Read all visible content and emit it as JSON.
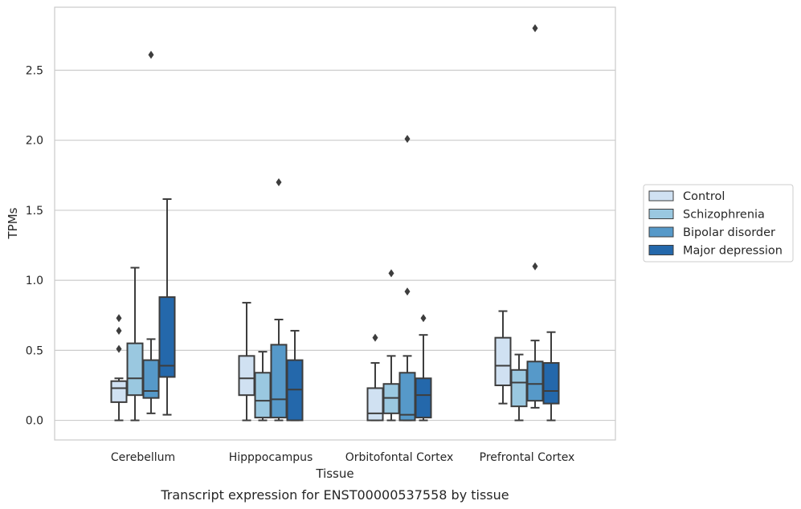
{
  "caption": "Transcript expression for ENST00000537558 by tissue",
  "chart_data": {
    "type": "boxplot",
    "xlabel": "Tissue",
    "ylabel": "TPMs",
    "ylim": [
      -0.14,
      2.95
    ],
    "yticks": [
      0.0,
      0.5,
      1.0,
      1.5,
      2.0,
      2.5
    ],
    "ytick_labels": [
      "0.0",
      "0.5",
      "1.0",
      "1.5",
      "2.0",
      "2.5"
    ],
    "grid": "horizontal",
    "legend_position": "right",
    "categories": [
      "Cerebellum",
      "Hipppocampus",
      "Orbitofontal Cortex",
      "Prefrontal Cortex"
    ],
    "series": [
      {
        "name": "Control",
        "color": "#d0e1f2",
        "boxes": [
          {
            "whisker_low": 0.0,
            "q1": 0.13,
            "median": 0.23,
            "q3": 0.28,
            "whisker_high": 0.3,
            "outliers": [
              0.51,
              0.64,
              0.73
            ]
          },
          {
            "whisker_low": 0.0,
            "q1": 0.18,
            "median": 0.3,
            "q3": 0.46,
            "whisker_high": 0.84,
            "outliers": []
          },
          {
            "whisker_low": 0.0,
            "q1": 0.0,
            "median": 0.05,
            "q3": 0.23,
            "whisker_high": 0.41,
            "outliers": [
              0.59
            ]
          },
          {
            "whisker_low": 0.12,
            "q1": 0.25,
            "median": 0.39,
            "q3": 0.59,
            "whisker_high": 0.78,
            "outliers": []
          }
        ]
      },
      {
        "name": "Schizophrenia",
        "color": "#9ac8e0",
        "boxes": [
          {
            "whisker_low": 0.0,
            "q1": 0.18,
            "median": 0.3,
            "q3": 0.55,
            "whisker_high": 1.09,
            "outliers": []
          },
          {
            "whisker_low": 0.0,
            "q1": 0.02,
            "median": 0.14,
            "q3": 0.34,
            "whisker_high": 0.49,
            "outliers": []
          },
          {
            "whisker_low": 0.0,
            "q1": 0.05,
            "median": 0.16,
            "q3": 0.26,
            "whisker_high": 0.46,
            "outliers": [
              1.05
            ]
          },
          {
            "whisker_low": 0.0,
            "q1": 0.1,
            "median": 0.27,
            "q3": 0.36,
            "whisker_high": 0.47,
            "outliers": []
          }
        ]
      },
      {
        "name": "Bipolar disorder",
        "color": "#5699c9",
        "boxes": [
          {
            "whisker_low": 0.05,
            "q1": 0.16,
            "median": 0.21,
            "q3": 0.43,
            "whisker_high": 0.58,
            "outliers": [
              2.61
            ]
          },
          {
            "whisker_low": 0.0,
            "q1": 0.02,
            "median": 0.15,
            "q3": 0.54,
            "whisker_high": 0.72,
            "outliers": [
              1.7
            ]
          },
          {
            "whisker_low": 0.0,
            "q1": 0.0,
            "median": 0.04,
            "q3": 0.34,
            "whisker_high": 0.46,
            "outliers": [
              0.92,
              2.01
            ]
          },
          {
            "whisker_low": 0.09,
            "q1": 0.14,
            "median": 0.26,
            "q3": 0.42,
            "whisker_high": 0.57,
            "outliers": [
              1.1,
              2.8
            ]
          }
        ]
      },
      {
        "name": "Major depression",
        "color": "#2468ab",
        "boxes": [
          {
            "whisker_low": 0.04,
            "q1": 0.31,
            "median": 0.39,
            "q3": 0.88,
            "whisker_high": 1.58,
            "outliers": []
          },
          {
            "whisker_low": 0.0,
            "q1": 0.0,
            "median": 0.22,
            "q3": 0.43,
            "whisker_high": 0.64,
            "outliers": []
          },
          {
            "whisker_low": 0.0,
            "q1": 0.02,
            "median": 0.18,
            "q3": 0.3,
            "whisker_high": 0.61,
            "outliers": [
              0.73
            ]
          },
          {
            "whisker_low": 0.0,
            "q1": 0.12,
            "median": 0.21,
            "q3": 0.41,
            "whisker_high": 0.63,
            "outliers": []
          }
        ]
      }
    ]
  }
}
